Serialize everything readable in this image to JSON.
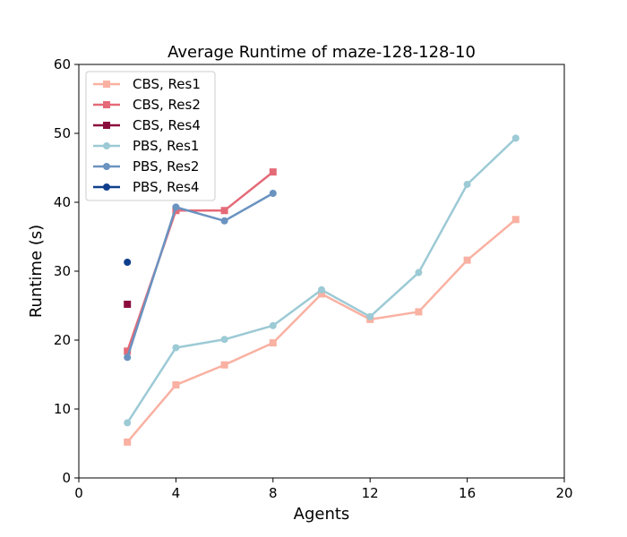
{
  "chart_data": {
    "type": "line",
    "title": "Average Runtime of maze-128-128-10",
    "xlabel": "Agents",
    "ylabel": "Runtime (s)",
    "xlim": [
      0,
      20
    ],
    "ylim": [
      0,
      60
    ],
    "xticks": [
      0,
      4,
      8,
      12,
      16,
      20
    ],
    "yticks": [
      0,
      10,
      20,
      30,
      40,
      50,
      60
    ],
    "grid": false,
    "legend_position": "top-left",
    "series": [
      {
        "name": "CBS, Res1",
        "color": "#f9b1a2",
        "marker": "square",
        "points": [
          [
            2,
            5.2
          ],
          [
            4,
            13.5
          ],
          [
            6,
            16.4
          ],
          [
            8,
            19.6
          ],
          [
            10,
            26.7
          ],
          [
            12,
            23.0
          ],
          [
            14,
            24.1
          ],
          [
            16,
            31.6
          ],
          [
            18,
            37.5
          ]
        ]
      },
      {
        "name": "CBS, Res2",
        "color": "#e46a78",
        "marker": "square",
        "points": [
          [
            2,
            18.4
          ],
          [
            4,
            38.8
          ],
          [
            6,
            38.8
          ],
          [
            8,
            44.4
          ]
        ]
      },
      {
        "name": "CBS, Res4",
        "color": "#8b0c3c",
        "marker": "square",
        "points": [
          [
            2,
            25.2
          ]
        ]
      },
      {
        "name": "PBS, Res1",
        "color": "#9ccad5",
        "marker": "circle",
        "points": [
          [
            2,
            8.0
          ],
          [
            4,
            18.9
          ],
          [
            6,
            20.1
          ],
          [
            8,
            22.1
          ],
          [
            10,
            27.3
          ],
          [
            12,
            23.4
          ],
          [
            14,
            29.8
          ],
          [
            16,
            42.6
          ],
          [
            18,
            49.3
          ]
        ]
      },
      {
        "name": "PBS, Res2",
        "color": "#6a93c0",
        "marker": "circle",
        "points": [
          [
            2,
            17.5
          ],
          [
            4,
            39.3
          ],
          [
            6,
            37.3
          ],
          [
            8,
            41.3
          ]
        ]
      },
      {
        "name": "PBS, Res4",
        "color": "#0f3f8c",
        "marker": "circle",
        "points": [
          [
            2,
            31.3
          ]
        ]
      }
    ]
  }
}
